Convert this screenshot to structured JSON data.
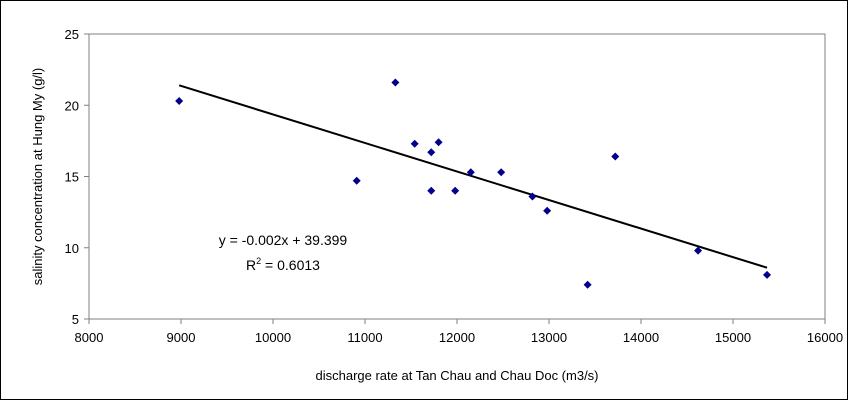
{
  "chart_data": {
    "type": "scatter",
    "title": "",
    "xlabel": "discharge rate at Tan Chau and Chau Doc (m3/s)",
    "ylabel": "salinity concentration at Hung My (g/l)",
    "xlim": [
      8000,
      16000
    ],
    "ylim": [
      5,
      25
    ],
    "xticks": [
      8000,
      9000,
      10000,
      11000,
      12000,
      13000,
      14000,
      15000,
      16000
    ],
    "yticks": [
      5,
      10,
      15,
      20,
      25
    ],
    "xtick_labels": [
      "8000",
      "9000",
      "10000",
      "11000",
      "12000",
      "13000",
      "14000",
      "15000",
      "16000"
    ],
    "ytick_labels": [
      "5",
      "10",
      "15",
      "20",
      "25"
    ],
    "grid": false,
    "legend": "none",
    "series": [
      {
        "marker": "diamond",
        "color": "#00008B",
        "points": [
          {
            "x": 8980,
            "y": 20.3
          },
          {
            "x": 10910,
            "y": 14.7
          },
          {
            "x": 11330,
            "y": 21.6
          },
          {
            "x": 11540,
            "y": 17.3
          },
          {
            "x": 11720,
            "y": 16.7
          },
          {
            "x": 11800,
            "y": 17.4
          },
          {
            "x": 11720,
            "y": 14.0
          },
          {
            "x": 11980,
            "y": 14.0
          },
          {
            "x": 12150,
            "y": 15.3
          },
          {
            "x": 12480,
            "y": 15.3
          },
          {
            "x": 12820,
            "y": 13.6
          },
          {
            "x": 12980,
            "y": 12.6
          },
          {
            "x": 13420,
            "y": 7.4
          },
          {
            "x": 13720,
            "y": 16.4
          },
          {
            "x": 14620,
            "y": 9.8
          },
          {
            "x": 15370,
            "y": 8.1
          }
        ]
      }
    ],
    "trendline": {
      "type": "linear",
      "slope": -0.002,
      "intercept": 39.399,
      "x_start": 8980,
      "x_end": 15370,
      "y_start": 21.4,
      "y_end": 8.6,
      "color": "#000000",
      "equation_text": "y = -0.002x + 39.399",
      "r2_prefix": "R",
      "r2_sup": "2",
      "r2_suffix": " = 0.6013"
    }
  }
}
